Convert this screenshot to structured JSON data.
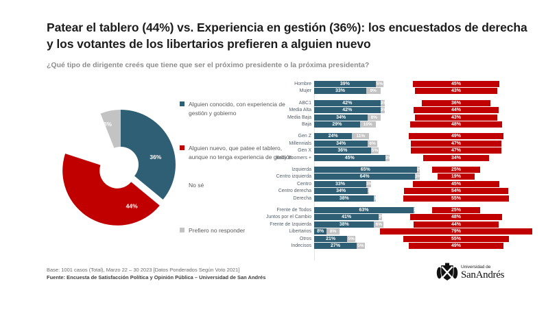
{
  "title": "Patear el tablero (44%) vs. Experiencia en gestión (36%): los encuestados de derecha y los votantes de los libertarios prefieren a alguien nuevo",
  "subtitle": "¿Qué tipo de dirigente creés que tiene que ser el próximo presidente o la próxima presidenta?",
  "colors": {
    "known": "#2E5F74",
    "new": "#C00000",
    "nose": "#FFFFFF",
    "refuse": "#C3C3C3"
  },
  "legend": [
    {
      "label": "Alguien conocido, con experiencia de gestión y gobierno",
      "color": "#2E5F74"
    },
    {
      "label": "Alguien nuevo, que patee el tablero, aunque no tenga experiencia de gestión",
      "color": "#C00000"
    },
    {
      "label": "No sé",
      "color": "#FFFFFF"
    },
    {
      "label": "Prefiero no responder",
      "color": "#C3C3C3"
    }
  ],
  "chart_data": [
    {
      "type": "pie",
      "title": "Total",
      "labels": [
        "Alguien conocido, con experiencia de gestión y gobierno",
        "Alguien nuevo, que patee el tablero, aunque no tenga experiencia de gestión",
        "No sé",
        "Prefiero no responder"
      ],
      "values": [
        36,
        44,
        14,
        6
      ],
      "value_labels_shown": [
        "36%",
        "44%",
        "",
        "6%"
      ],
      "colors": [
        "#2E5F74",
        "#C00000",
        "#FFFFFF",
        "#C3C3C3"
      ],
      "donut": true,
      "exploded_slice": 1,
      "note": "14% (No sé) segment is white/unlabeled in the graphic"
    },
    {
      "type": "bar",
      "orientation": "horizontal",
      "series_names": [
        "Alguien conocido (experiencia)",
        "No sé",
        "Alguien nuevo (patee el tablero)"
      ],
      "series_colors": [
        "#2E5F74",
        "#C3C3C3",
        "#C00000"
      ],
      "groups": [
        {
          "rows": [
            {
              "label": "Hombre",
              "known": 39,
              "nose": 5,
              "nuevo": 45
            },
            {
              "label": "Mujer",
              "known": 33,
              "nose": 9,
              "nuevo": 43
            }
          ]
        },
        {
          "rows": [
            {
              "label": "ABC1",
              "known": 42,
              "nose": 3,
              "nuevo": 36
            },
            {
              "label": "Media Alta",
              "known": 42,
              "nose": 3,
              "nuevo": 44
            },
            {
              "label": "Media Baja",
              "known": 34,
              "nose": 8,
              "nuevo": 43
            },
            {
              "label": "Baja",
              "known": 29,
              "nose": 10,
              "nuevo": 48
            }
          ]
        },
        {
          "rows": [
            {
              "label": "Gen Z",
              "known": 24,
              "nose": 11,
              "nuevo": 49
            },
            {
              "label": "Millennials",
              "known": 34,
              "nose": 6,
              "nuevo": 47
            },
            {
              "label": "Gen X",
              "known": 36,
              "nose": 5,
              "nuevo": 47
            },
            {
              "label": "Baby Boomers +",
              "known": 45,
              "nose": 3,
              "nuevo": 34
            }
          ]
        },
        {
          "rows": [
            {
              "label": "Izquierda",
              "known": 65,
              "nose": 2,
              "nuevo": 25
            },
            {
              "label": "Centro izquierda",
              "known": 64,
              "nose": 3,
              "nuevo": 19
            },
            {
              "label": "Centro",
              "known": 33,
              "nose": 3,
              "nuevo": 45
            },
            {
              "label": "Centro derecha",
              "known": 34,
              "nose": 1,
              "nuevo": 54
            },
            {
              "label": "Derecha",
              "known": 38,
              "nose": 1,
              "nuevo": 55
            }
          ]
        },
        {
          "rows": [
            {
              "label": "Frente de Todos",
              "known": 63,
              "nose": 1,
              "nuevo": 25
            },
            {
              "label": "Juntos por el Cambio",
              "known": 41,
              "nose": 2,
              "nuevo": 48
            },
            {
              "label": "Frente de Izquierda",
              "known": 38,
              "nose": 6,
              "nuevo": 44
            },
            {
              "label": "Libertarios",
              "known": 8,
              "nose": 8,
              "nuevo": 79
            },
            {
              "label": "Otros",
              "known": 21,
              "nose": 5,
              "nuevo": 55
            },
            {
              "label": "Indecisos",
              "known": 27,
              "nose": 5,
              "nuevo": 49
            }
          ]
        }
      ]
    }
  ],
  "footer": {
    "base": "Base: 1001 casos (Total), Marzo 22 – 30 2023 [Datos Ponderados Según Voto 2021]",
    "fuente": "Fuente: Encuesta de Satisfacción Política y Opinión Pública – Universidad de San Andrés"
  },
  "logo": {
    "line1": "Universidad de",
    "line2": "SanAndrés"
  }
}
